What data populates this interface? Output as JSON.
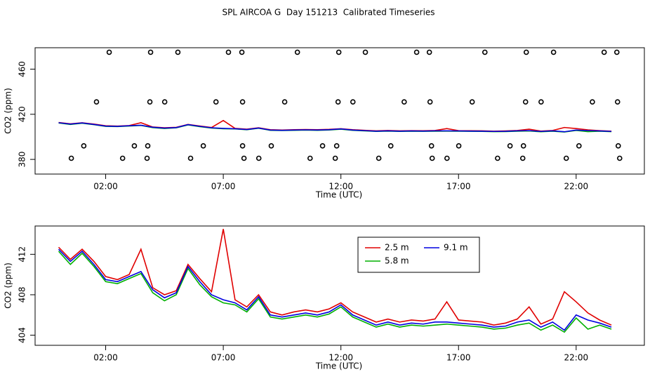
{
  "title": "SPL AIRCOA G  Day 151213  Calibrated Timeseries",
  "chart_data": [
    {
      "type": "line",
      "xlabel": "Time (UTC)",
      "ylabel": "CO2 (ppm)",
      "xlim": [
        -1,
        24.9
      ],
      "ylim": [
        367,
        479
      ],
      "xticks": [
        {
          "value": 2,
          "label": "02:00"
        },
        {
          "value": 7,
          "label": "07:00"
        },
        {
          "value": 12,
          "label": "12:00"
        },
        {
          "value": 17,
          "label": "17:00"
        },
        {
          "value": 22,
          "label": "22:00"
        }
      ],
      "yticks": [
        380,
        420,
        460
      ],
      "x": [
        0,
        0.5,
        1,
        1.5,
        2,
        2.5,
        3,
        3.5,
        4,
        4.5,
        5,
        5.5,
        6,
        6.5,
        7,
        7.5,
        8,
        8.5,
        9,
        9.5,
        10,
        10.5,
        11,
        11.5,
        12,
        12.5,
        13,
        13.5,
        14,
        14.5,
        15,
        15.5,
        16,
        16.5,
        17,
        17.5,
        18,
        18.5,
        19,
        19.5,
        20,
        20.5,
        21,
        21.5,
        22,
        22.5,
        23,
        23.5
      ],
      "series": [
        {
          "color": "#e00000",
          "values": [
            412.7,
            411.5,
            412.5,
            411.3,
            409.8,
            409.5,
            410,
            412.5,
            408.7,
            408,
            408.4,
            411,
            409.6,
            408.3,
            414.5,
            407.5,
            406.8,
            408,
            406.3,
            406,
            406.3,
            406.5,
            406.3,
            406.6,
            407.2,
            406.3,
            405.8,
            405.3,
            405.6,
            405.3,
            405.5,
            405.4,
            405.6,
            407.3,
            405.5,
            405.4,
            405.3,
            405,
            405.2,
            405.6,
            406.8,
            405.1,
            405.6,
            408.3,
            407.3,
            406.2,
            405.5,
            405
          ]
        },
        {
          "color": "#00b000",
          "values": [
            412.3,
            411,
            412.1,
            410.8,
            409.3,
            409.1,
            409.6,
            410.1,
            408.2,
            407.4,
            408,
            410.6,
            409,
            407.8,
            407.2,
            407,
            406.3,
            407.6,
            405.8,
            405.6,
            405.8,
            406,
            405.8,
            406.1,
            406.8,
            405.8,
            405.3,
            404.8,
            405.1,
            404.8,
            405,
            404.9,
            405,
            405.1,
            405,
            404.9,
            404.8,
            404.6,
            404.7,
            405,
            405.2,
            404.5,
            405,
            404.3,
            405.7,
            404.6,
            405,
            404.6
          ]
        },
        {
          "color": "#0000e0",
          "values": [
            412.5,
            411.3,
            412.3,
            411,
            409.5,
            409.3,
            409.8,
            410.3,
            408.5,
            407.7,
            408.2,
            410.8,
            409.3,
            408,
            407.5,
            407.2,
            406.5,
            407.8,
            406,
            405.8,
            406,
            406.2,
            406,
            406.3,
            407,
            406,
            405.5,
            405,
            405.3,
            405,
            405.2,
            405.1,
            405.3,
            405.3,
            405.2,
            405.1,
            405,
            404.8,
            404.9,
            405.3,
            405.5,
            404.8,
            405.3,
            404.5,
            406,
            405.5,
            405.2,
            404.8
          ]
        }
      ],
      "points": {
        "color": "#000000",
        "x": [
          2.15,
          3.91,
          5.07,
          7.22,
          7.79,
          10.15,
          11.91,
          13.04,
          15.22,
          15.76,
          18.12,
          19.88,
          21.04,
          23.19,
          23.73,
          1.61,
          3.88,
          4.51,
          6.69,
          7.82,
          9.61,
          11.88,
          12.51,
          14.69,
          15.79,
          17.58,
          19.85,
          20.51,
          22.69,
          23.76,
          1.07,
          3.22,
          3.79,
          6.15,
          7.82,
          9.04,
          11.22,
          11.82,
          14.12,
          15.85,
          17.01,
          19.19,
          19.76,
          22.12,
          23.79,
          0.54,
          2.72,
          3.76,
          5.61,
          7.88,
          8.51,
          10.69,
          11.76,
          13.61,
          15.88,
          16.51,
          18.66,
          19.73,
          21.58,
          23.85
        ],
        "y": [
          475,
          475,
          475,
          475,
          475,
          475,
          475,
          475,
          475,
          475,
          475,
          475,
          475,
          475,
          475,
          431,
          431,
          431,
          431,
          431,
          431,
          431,
          431,
          431,
          431,
          431,
          431,
          431,
          431,
          431,
          392,
          392,
          392,
          392,
          392,
          392,
          392,
          392,
          392,
          392,
          392,
          392,
          392,
          392,
          392,
          381,
          381,
          381,
          381,
          381,
          381,
          381,
          381,
          381,
          381,
          381,
          381,
          381,
          381,
          381
        ]
      }
    },
    {
      "type": "line",
      "xlabel": "Time (UTC)",
      "ylabel": "CO2 (ppm)",
      "legend": "top",
      "xlim": [
        -1,
        24.9
      ],
      "ylim": [
        403,
        414.8
      ],
      "xticks": [
        {
          "value": 2,
          "label": "02:00"
        },
        {
          "value": 7,
          "label": "07:00"
        },
        {
          "value": 12,
          "label": "12:00"
        },
        {
          "value": 17,
          "label": "17:00"
        },
        {
          "value": 22,
          "label": "22:00"
        }
      ],
      "yticks": [
        404,
        408,
        412
      ],
      "x": [
        0,
        0.5,
        1,
        1.5,
        2,
        2.5,
        3,
        3.5,
        4,
        4.5,
        5,
        5.5,
        6,
        6.5,
        7,
        7.5,
        8,
        8.5,
        9,
        9.5,
        10,
        10.5,
        11,
        11.5,
        12,
        12.5,
        13,
        13.5,
        14,
        14.5,
        15,
        15.5,
        16,
        16.5,
        17,
        17.5,
        18,
        18.5,
        19,
        19.5,
        20,
        20.5,
        21,
        21.5,
        22,
        22.5,
        23,
        23.5
      ],
      "series": [
        {
          "name": "2.5 m",
          "color": "#e00000",
          "values": [
            412.7,
            411.5,
            412.5,
            411.3,
            409.8,
            409.5,
            410,
            412.5,
            408.7,
            408,
            408.4,
            411,
            409.6,
            408.3,
            414.5,
            407.5,
            406.8,
            408,
            406.3,
            406,
            406.3,
            406.5,
            406.3,
            406.6,
            407.2,
            406.3,
            405.8,
            405.3,
            405.6,
            405.3,
            405.5,
            405.4,
            405.6,
            407.3,
            405.5,
            405.4,
            405.3,
            405,
            405.2,
            405.6,
            406.8,
            405.1,
            405.6,
            408.3,
            407.3,
            406.2,
            405.5,
            405
          ]
        },
        {
          "name": "5.8 m",
          "color": "#00b000",
          "values": [
            412.3,
            411,
            412.1,
            410.8,
            409.3,
            409.1,
            409.6,
            410.1,
            408.2,
            407.4,
            408,
            410.6,
            409,
            407.8,
            407.2,
            407,
            406.3,
            407.6,
            405.8,
            405.6,
            405.8,
            406,
            405.8,
            406.1,
            406.8,
            405.8,
            405.3,
            404.8,
            405.1,
            404.8,
            405,
            404.9,
            405,
            405.1,
            405,
            404.9,
            404.8,
            404.6,
            404.7,
            405,
            405.2,
            404.5,
            405,
            404.3,
            405.7,
            404.6,
            405,
            404.6
          ]
        },
        {
          "name": "9.1 m",
          "color": "#0000e0",
          "values": [
            412.5,
            411.3,
            412.3,
            411,
            409.5,
            409.3,
            409.8,
            410.3,
            408.5,
            407.7,
            408.2,
            410.8,
            409.3,
            408,
            407.5,
            407.2,
            406.5,
            407.8,
            406,
            405.8,
            406,
            406.2,
            406,
            406.3,
            407,
            406,
            405.5,
            405,
            405.3,
            405,
            405.2,
            405.1,
            405.3,
            405.3,
            405.2,
            405.1,
            405,
            404.8,
            404.9,
            405.3,
            405.5,
            404.8,
            405.3,
            404.5,
            406,
            405.5,
            405.2,
            404.8
          ]
        }
      ]
    }
  ]
}
